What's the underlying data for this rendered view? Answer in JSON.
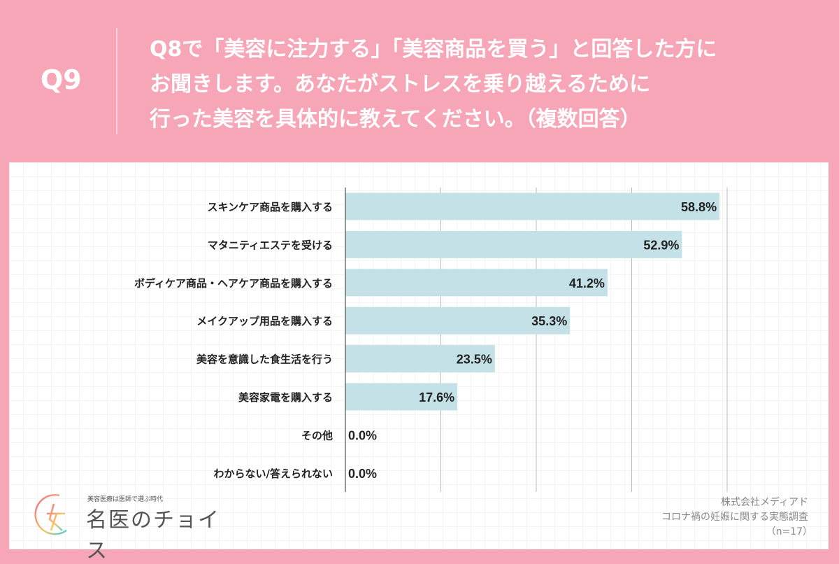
{
  "header": {
    "qnum": "Q9",
    "question": "Q8で「美容に注力する」「美容商品を買う」と回答した方に\nお聞きします。あなたがストレスを乗り越えるために\n行った美容を具体的に教えてください。（複数回答）"
  },
  "chart_data": {
    "type": "bar",
    "orientation": "horizontal",
    "categories": [
      "スキンケア商品を購入する",
      "マタニティエステを受ける",
      "ボディケア商品・ヘアケア商品を購入する",
      "メイクアップ用品を購入する",
      "美容を意識した食生活を行う",
      "美容家電を購入する",
      "その他",
      "わからない/答えられない"
    ],
    "values": [
      58.8,
      52.9,
      41.2,
      35.3,
      23.5,
      17.6,
      0.0,
      0.0
    ],
    "labels": [
      "58.8%",
      "52.9%",
      "41.2%",
      "35.3%",
      "23.5%",
      "17.6%",
      "0.0%",
      "0.0%"
    ],
    "xlim": [
      0,
      60
    ],
    "gridlines": [
      15,
      30,
      45,
      60
    ],
    "grid": true,
    "bar_color": "#c3e1e6"
  },
  "logo": {
    "tagline": "美容医療は医師で選ぶ時代",
    "name": "名医のチョイス"
  },
  "source": {
    "company": "株式会社メディアド",
    "survey": "コロナ禍の妊娠に関する実態調査",
    "n": "（n=17）"
  },
  "colors": {
    "background": "#f7a6b7",
    "bar": "#c3e1e6"
  }
}
